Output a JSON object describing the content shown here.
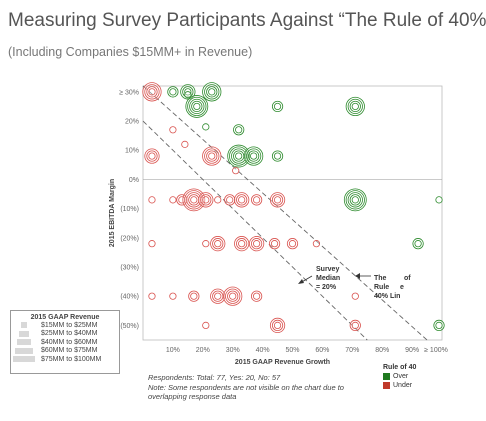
{
  "title": "Measuring Survey Participants Against “The Rule of 40%”",
  "subtitle": "(Including Companies $15MM+ in Revenue)",
  "colors": {
    "over": "#2e8b2e",
    "under": "#d9534f",
    "over_legend": "#1f7a1f",
    "under_legend": "#c0392b"
  },
  "chart_data": {
    "type": "scatter",
    "title": "Measuring Survey Participants Against “The Rule of 40%”",
    "subtitle": "(Including Companies $15MM+ in Revenue)",
    "xlabel": "2015 GAAP Revenue Growth",
    "ylabel": "2015 EBITDA Margin",
    "x_ticks": [
      "10%",
      "20%",
      "30%",
      "40%",
      "50%",
      "60%",
      "70%",
      "80%",
      "90%",
      "≥ 100%"
    ],
    "y_ticks": [
      "≥ 30%",
      "20%",
      "10%",
      "0%",
      "(10%)",
      "(20%)",
      "(30%)",
      "(40%)",
      "(50%)"
    ],
    "xlim": [
      0,
      100
    ],
    "ylim": [
      -55,
      32
    ],
    "grid": false,
    "reference_lines": [
      {
        "label": "Survey Median = 20%",
        "sum": 20
      },
      {
        "label": "The Rule of 40% Line",
        "sum": 40
      }
    ],
    "size_legend": {
      "title": "2015 GAAP Revenue",
      "entries": [
        "$15MM to $25MM",
        "$25MM to $40MM",
        "$40MM to $60MM",
        "$60MM to $75MM",
        "$75MM to $100MM"
      ]
    },
    "color_legend": {
      "title": "Rule of 40",
      "entries": [
        "Over",
        "Under"
      ]
    },
    "series": [
      {
        "name": "Over",
        "points": [
          [
            10,
            30,
            2
          ],
          [
            15,
            30,
            3
          ],
          [
            15,
            29,
            1
          ],
          [
            18,
            25,
            5
          ],
          [
            23,
            30,
            4
          ],
          [
            32,
            8,
            5
          ],
          [
            32,
            17,
            2
          ],
          [
            37,
            8,
            4
          ],
          [
            45,
            8,
            2
          ],
          [
            45,
            25,
            2
          ],
          [
            71,
            25,
            4
          ],
          [
            71,
            -7,
            5
          ],
          [
            21,
            18,
            1
          ],
          [
            99,
            -7,
            1
          ],
          [
            92,
            -22,
            2
          ],
          [
            99,
            -50,
            2
          ]
        ]
      },
      {
        "name": "Under",
        "points": [
          [
            3,
            30,
            4
          ],
          [
            3,
            8,
            3
          ],
          [
            10,
            17,
            1
          ],
          [
            14,
            12,
            1
          ],
          [
            23,
            8,
            4
          ],
          [
            31,
            3,
            1
          ],
          [
            3,
            -7,
            1
          ],
          [
            10,
            -7,
            1
          ],
          [
            13,
            -7,
            2
          ],
          [
            17,
            -7,
            5
          ],
          [
            21,
            -7,
            3
          ],
          [
            25,
            -7,
            1
          ],
          [
            29,
            -7,
            2
          ],
          [
            33,
            -7,
            3
          ],
          [
            38,
            -7,
            2
          ],
          [
            45,
            -7,
            3
          ],
          [
            3,
            -22,
            1
          ],
          [
            21,
            -22,
            1
          ],
          [
            25,
            -22,
            3
          ],
          [
            33,
            -22,
            3
          ],
          [
            38,
            -22,
            3
          ],
          [
            44,
            -22,
            2
          ],
          [
            50,
            -22,
            2
          ],
          [
            58,
            -22,
            1
          ],
          [
            3,
            -40,
            1
          ],
          [
            10,
            -40,
            1
          ],
          [
            17,
            -40,
            2
          ],
          [
            25,
            -40,
            3
          ],
          [
            30,
            -40,
            4
          ],
          [
            38,
            -40,
            2
          ],
          [
            21,
            -50,
            1
          ],
          [
            45,
            -50,
            3
          ],
          [
            71,
            -50,
            2
          ],
          [
            71,
            -40,
            1
          ]
        ]
      }
    ]
  },
  "annotations": {
    "median_line1": "Survey",
    "median_line2": "Median",
    "median_line3": "= 20%",
    "rule_line1": "The",
    "rule_line1b": "Rule",
    "rule_line1c": "of",
    "rule_line2": "Rule",
    "rule_line2b": "e",
    "rule_line3": "40% Lin"
  },
  "legend_sizes": {
    "title": "2015 GAAP Revenue",
    "entries": [
      "$15MM to $25MM",
      "$25MM to $40MM",
      "$40MM to $60MM",
      "$60MM to $75MM",
      "$75MM to $100MM"
    ]
  },
  "legend_rule": {
    "title": "Rule of 40",
    "over": "Over",
    "under": "Under"
  },
  "footnote": {
    "respondents": "Respondents: Total: 77, Yes: 20, No: 57",
    "note": "Note: Some respondents are not visible on the chart due to overlapping response data"
  }
}
